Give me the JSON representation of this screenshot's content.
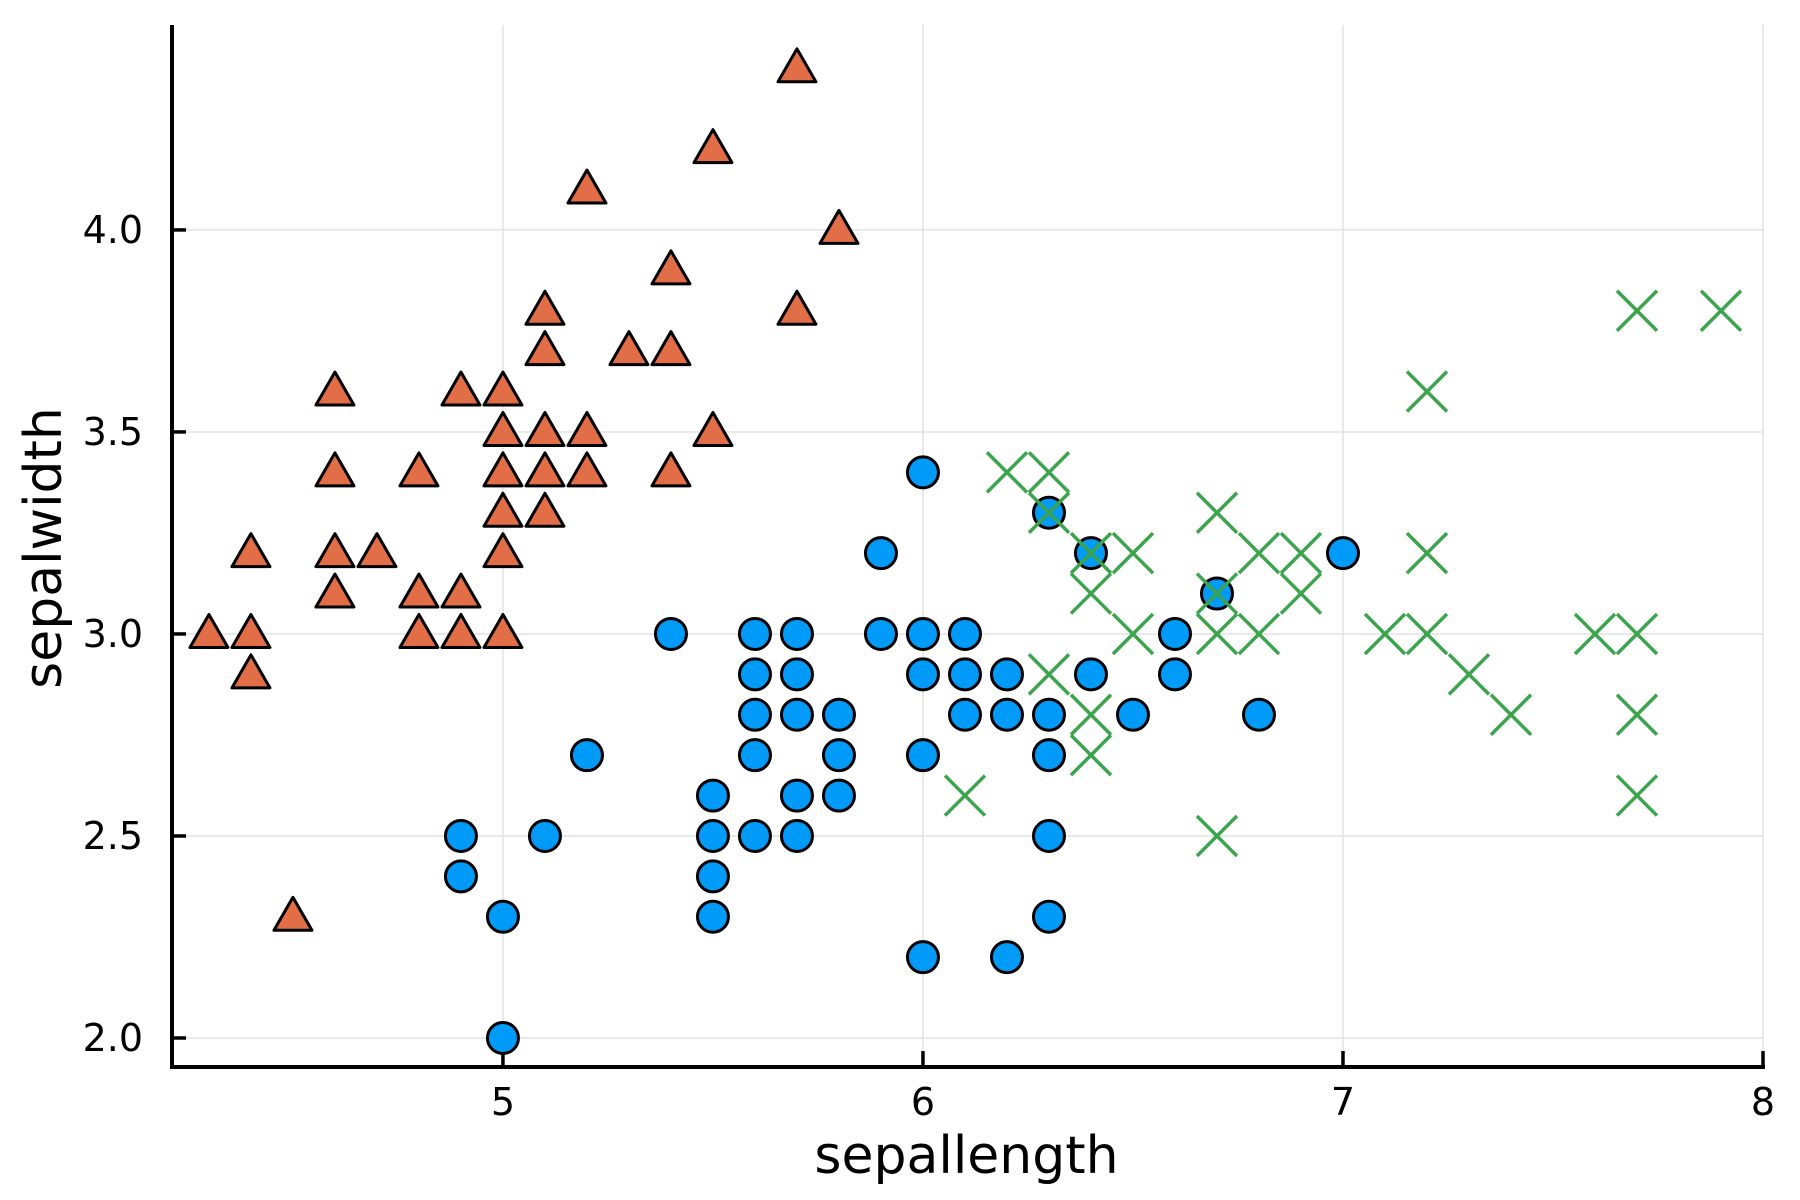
{
  "chart_data": {
    "type": "scatter",
    "title": "",
    "xlabel": "sepallength",
    "ylabel": "sepalwidth",
    "xlim": [
      4.2073,
      8.0
    ],
    "ylim": [
      1.9282,
      4.5072
    ],
    "xticks": [
      {
        "v": 5,
        "label": "5"
      },
      {
        "v": 6,
        "label": "6"
      },
      {
        "v": 7,
        "label": "7"
      },
      {
        "v": 8,
        "label": "8"
      }
    ],
    "yticks": [
      {
        "v": 2.0,
        "label": "2.0"
      },
      {
        "v": 2.5,
        "label": "2.5"
      },
      {
        "v": 3.0,
        "label": "3.0"
      },
      {
        "v": 3.5,
        "label": "3.5"
      },
      {
        "v": 4.0,
        "label": "4.0"
      }
    ],
    "grid": true,
    "legend": "none",
    "colors": {
      "background": "#ffffff",
      "grid": "#e2e2e2",
      "axis": "#000000",
      "tick_text": "#000000",
      "triangle_fill": "#E26E47",
      "circle_fill": "#009AF9",
      "marker_stroke": "#000000",
      "cross_stroke": "#3DA44E"
    },
    "series": [
      {
        "name": "triangles",
        "marker": "triangle-up",
        "color": "#E26E47",
        "points": [
          [
            4.3,
            3.0
          ],
          [
            4.4,
            2.9
          ],
          [
            4.4,
            3.0
          ],
          [
            4.4,
            3.2
          ],
          [
            4.5,
            2.3
          ],
          [
            4.6,
            3.1
          ],
          [
            4.6,
            3.2
          ],
          [
            4.6,
            3.4
          ],
          [
            4.6,
            3.6
          ],
          [
            4.7,
            3.2
          ],
          [
            4.8,
            3.0
          ],
          [
            4.8,
            3.1
          ],
          [
            4.8,
            3.4
          ],
          [
            4.9,
            3.0
          ],
          [
            4.9,
            3.1
          ],
          [
            4.9,
            3.6
          ],
          [
            5.0,
            3.0
          ],
          [
            5.0,
            3.2
          ],
          [
            5.0,
            3.3
          ],
          [
            5.0,
            3.4
          ],
          [
            5.0,
            3.5
          ],
          [
            5.0,
            3.6
          ],
          [
            5.1,
            3.3
          ],
          [
            5.1,
            3.4
          ],
          [
            5.1,
            3.5
          ],
          [
            5.1,
            3.7
          ],
          [
            5.1,
            3.8
          ],
          [
            5.2,
            3.4
          ],
          [
            5.2,
            3.5
          ],
          [
            5.2,
            4.1
          ],
          [
            5.3,
            3.7
          ],
          [
            5.4,
            3.4
          ],
          [
            5.4,
            3.7
          ],
          [
            5.4,
            3.9
          ],
          [
            5.5,
            3.5
          ],
          [
            5.5,
            4.2
          ],
          [
            5.7,
            3.8
          ],
          [
            5.7,
            4.4
          ],
          [
            5.8,
            4.0
          ]
        ]
      },
      {
        "name": "circles",
        "marker": "circle",
        "color": "#009AF9",
        "points": [
          [
            4.9,
            2.4
          ],
          [
            4.9,
            2.5
          ],
          [
            5.0,
            2.0
          ],
          [
            5.0,
            2.3
          ],
          [
            5.1,
            2.5
          ],
          [
            5.2,
            2.7
          ],
          [
            5.4,
            3.0
          ],
          [
            5.5,
            2.3
          ],
          [
            5.5,
            2.4
          ],
          [
            5.5,
            2.5
          ],
          [
            5.5,
            2.6
          ],
          [
            5.6,
            2.5
          ],
          [
            5.6,
            2.7
          ],
          [
            5.6,
            2.8
          ],
          [
            5.6,
            2.9
          ],
          [
            5.6,
            3.0
          ],
          [
            5.7,
            2.5
          ],
          [
            5.7,
            2.6
          ],
          [
            5.7,
            2.8
          ],
          [
            5.7,
            2.9
          ],
          [
            5.7,
            3.0
          ],
          [
            5.8,
            2.6
          ],
          [
            5.8,
            2.7
          ],
          [
            5.8,
            2.8
          ],
          [
            5.9,
            3.0
          ],
          [
            5.9,
            3.2
          ],
          [
            6.0,
            2.2
          ],
          [
            6.0,
            2.7
          ],
          [
            6.0,
            2.9
          ],
          [
            6.0,
            3.0
          ],
          [
            6.0,
            3.4
          ],
          [
            6.1,
            2.8
          ],
          [
            6.1,
            2.9
          ],
          [
            6.1,
            3.0
          ],
          [
            6.2,
            2.2
          ],
          [
            6.2,
            2.8
          ],
          [
            6.2,
            2.9
          ],
          [
            6.3,
            2.3
          ],
          [
            6.3,
            2.5
          ],
          [
            6.3,
            2.7
          ],
          [
            6.3,
            2.8
          ],
          [
            6.3,
            3.3
          ],
          [
            6.4,
            2.9
          ],
          [
            6.4,
            3.2
          ],
          [
            6.5,
            2.8
          ],
          [
            6.6,
            2.9
          ],
          [
            6.6,
            3.0
          ],
          [
            6.7,
            3.1
          ],
          [
            6.8,
            2.8
          ],
          [
            7.0,
            3.2
          ]
        ]
      },
      {
        "name": "crosses",
        "marker": "x",
        "color": "#3DA44E",
        "points": [
          [
            6.1,
            2.6
          ],
          [
            6.2,
            3.4
          ],
          [
            6.3,
            2.9
          ],
          [
            6.3,
            3.3
          ],
          [
            6.3,
            3.4
          ],
          [
            6.4,
            2.7
          ],
          [
            6.4,
            2.8
          ],
          [
            6.4,
            3.1
          ],
          [
            6.4,
            3.2
          ],
          [
            6.5,
            3.0
          ],
          [
            6.5,
            3.2
          ],
          [
            6.7,
            2.5
          ],
          [
            6.7,
            3.0
          ],
          [
            6.7,
            3.1
          ],
          [
            6.7,
            3.3
          ],
          [
            6.8,
            3.0
          ],
          [
            6.8,
            3.2
          ],
          [
            6.9,
            3.1
          ],
          [
            6.9,
            3.2
          ],
          [
            7.1,
            3.0
          ],
          [
            7.2,
            3.0
          ],
          [
            7.2,
            3.2
          ],
          [
            7.2,
            3.6
          ],
          [
            7.3,
            2.9
          ],
          [
            7.4,
            2.8
          ],
          [
            7.6,
            3.0
          ],
          [
            7.7,
            2.6
          ],
          [
            7.7,
            2.8
          ],
          [
            7.7,
            3.0
          ],
          [
            7.7,
            3.8
          ],
          [
            7.9,
            3.8
          ]
        ]
      }
    ]
  }
}
